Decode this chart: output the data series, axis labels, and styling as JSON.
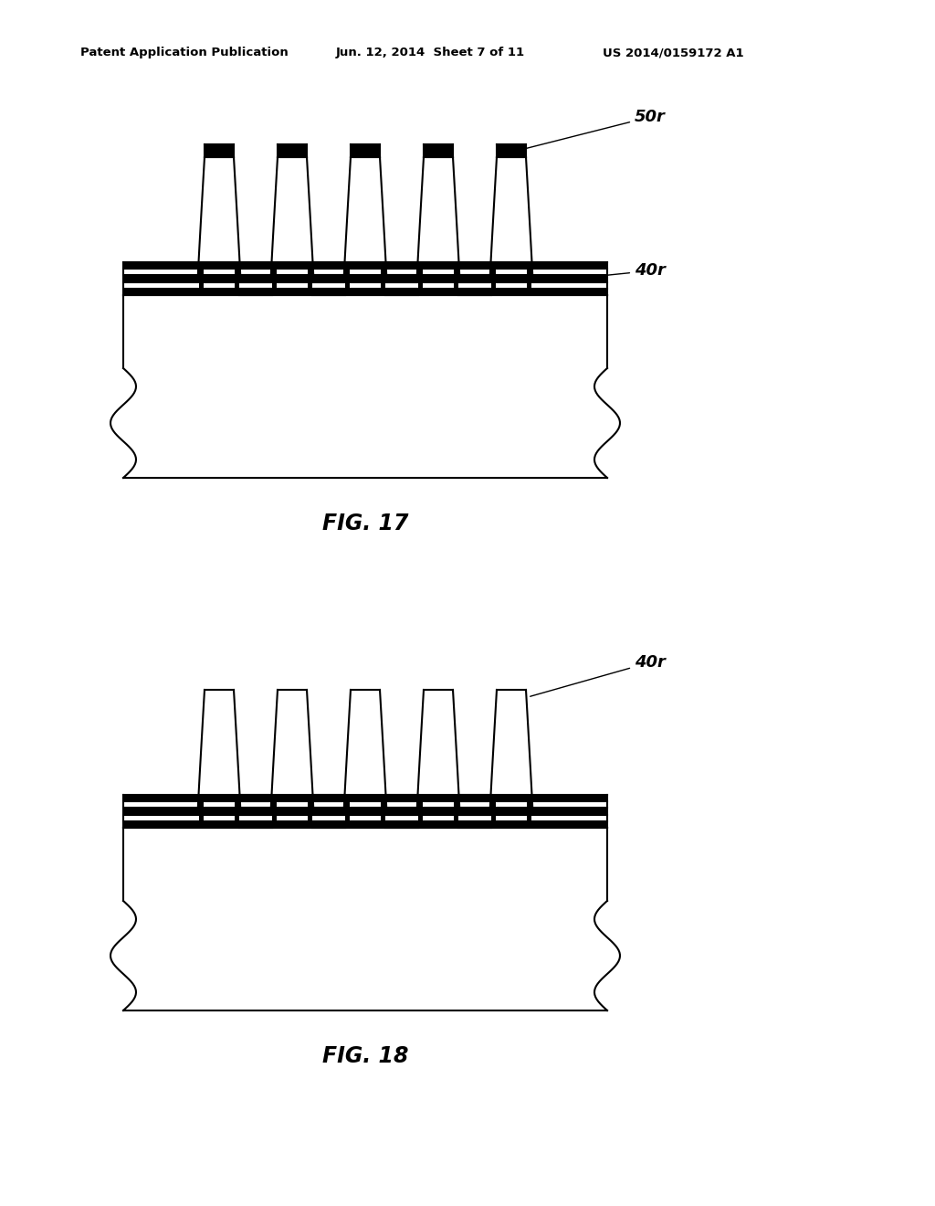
{
  "header_left": "Patent Application Publication",
  "header_mid": "Jun. 12, 2014  Sheet 7 of 11",
  "header_right": "US 2014/0159172 A1",
  "fig17_label": "FIG. 17",
  "fig18_label": "FIG. 18",
  "label_50r": "50r",
  "label_40r": "40r",
  "line_color": "#000000",
  "background_color": "#ffffff",
  "lw": 1.5
}
